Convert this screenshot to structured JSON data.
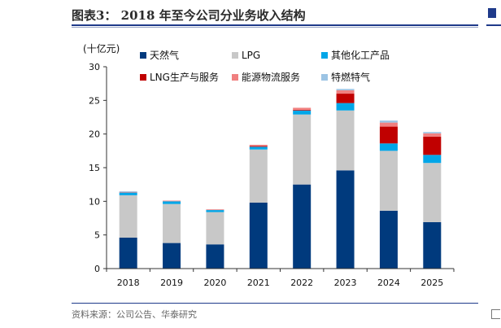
{
  "figure_title": "图表3：  2018 年至今公司分业务收入结构",
  "source_note": "资料来源：公司公告、华泰研究",
  "chart_data": {
    "type": "bar",
    "stacked": true,
    "unit_label": "(十亿元)",
    "categories": [
      "2018",
      "2019",
      "2020",
      "2021",
      "2022",
      "2023",
      "2024",
      "2025"
    ],
    "ylim": [
      0,
      30
    ],
    "yticks": [
      0,
      5,
      10,
      15,
      20,
      25,
      30
    ],
    "grid": false,
    "legend_position": "top",
    "series": [
      {
        "name": "天然气",
        "color": "#003a7d",
        "values": [
          4.6,
          3.8,
          3.6,
          9.8,
          12.5,
          14.6,
          8.6,
          6.9
        ]
      },
      {
        "name": "LPG",
        "color": "#c8c8c8",
        "values": [
          6.3,
          5.8,
          4.8,
          7.9,
          10.4,
          8.9,
          8.9,
          8.8
        ]
      },
      {
        "name": "其他化工产品",
        "color": "#00a6e8",
        "values": [
          0.4,
          0.4,
          0.3,
          0.4,
          0.6,
          1.1,
          1.1,
          1.2
        ]
      },
      {
        "name": "LNG生产与服务",
        "color": "#c00000",
        "values": [
          0.0,
          0.0,
          0.0,
          0.1,
          0.1,
          1.4,
          2.5,
          2.7
        ]
      },
      {
        "name": "能源物流服务",
        "color": "#f08080",
        "values": [
          0.1,
          0.1,
          0.1,
          0.2,
          0.3,
          0.5,
          0.6,
          0.5
        ]
      },
      {
        "name": "特燃特气",
        "color": "#9cc4e4",
        "values": [
          0.1,
          0.0,
          0.0,
          0.0,
          0.0,
          0.2,
          0.3,
          0.2
        ]
      }
    ]
  }
}
